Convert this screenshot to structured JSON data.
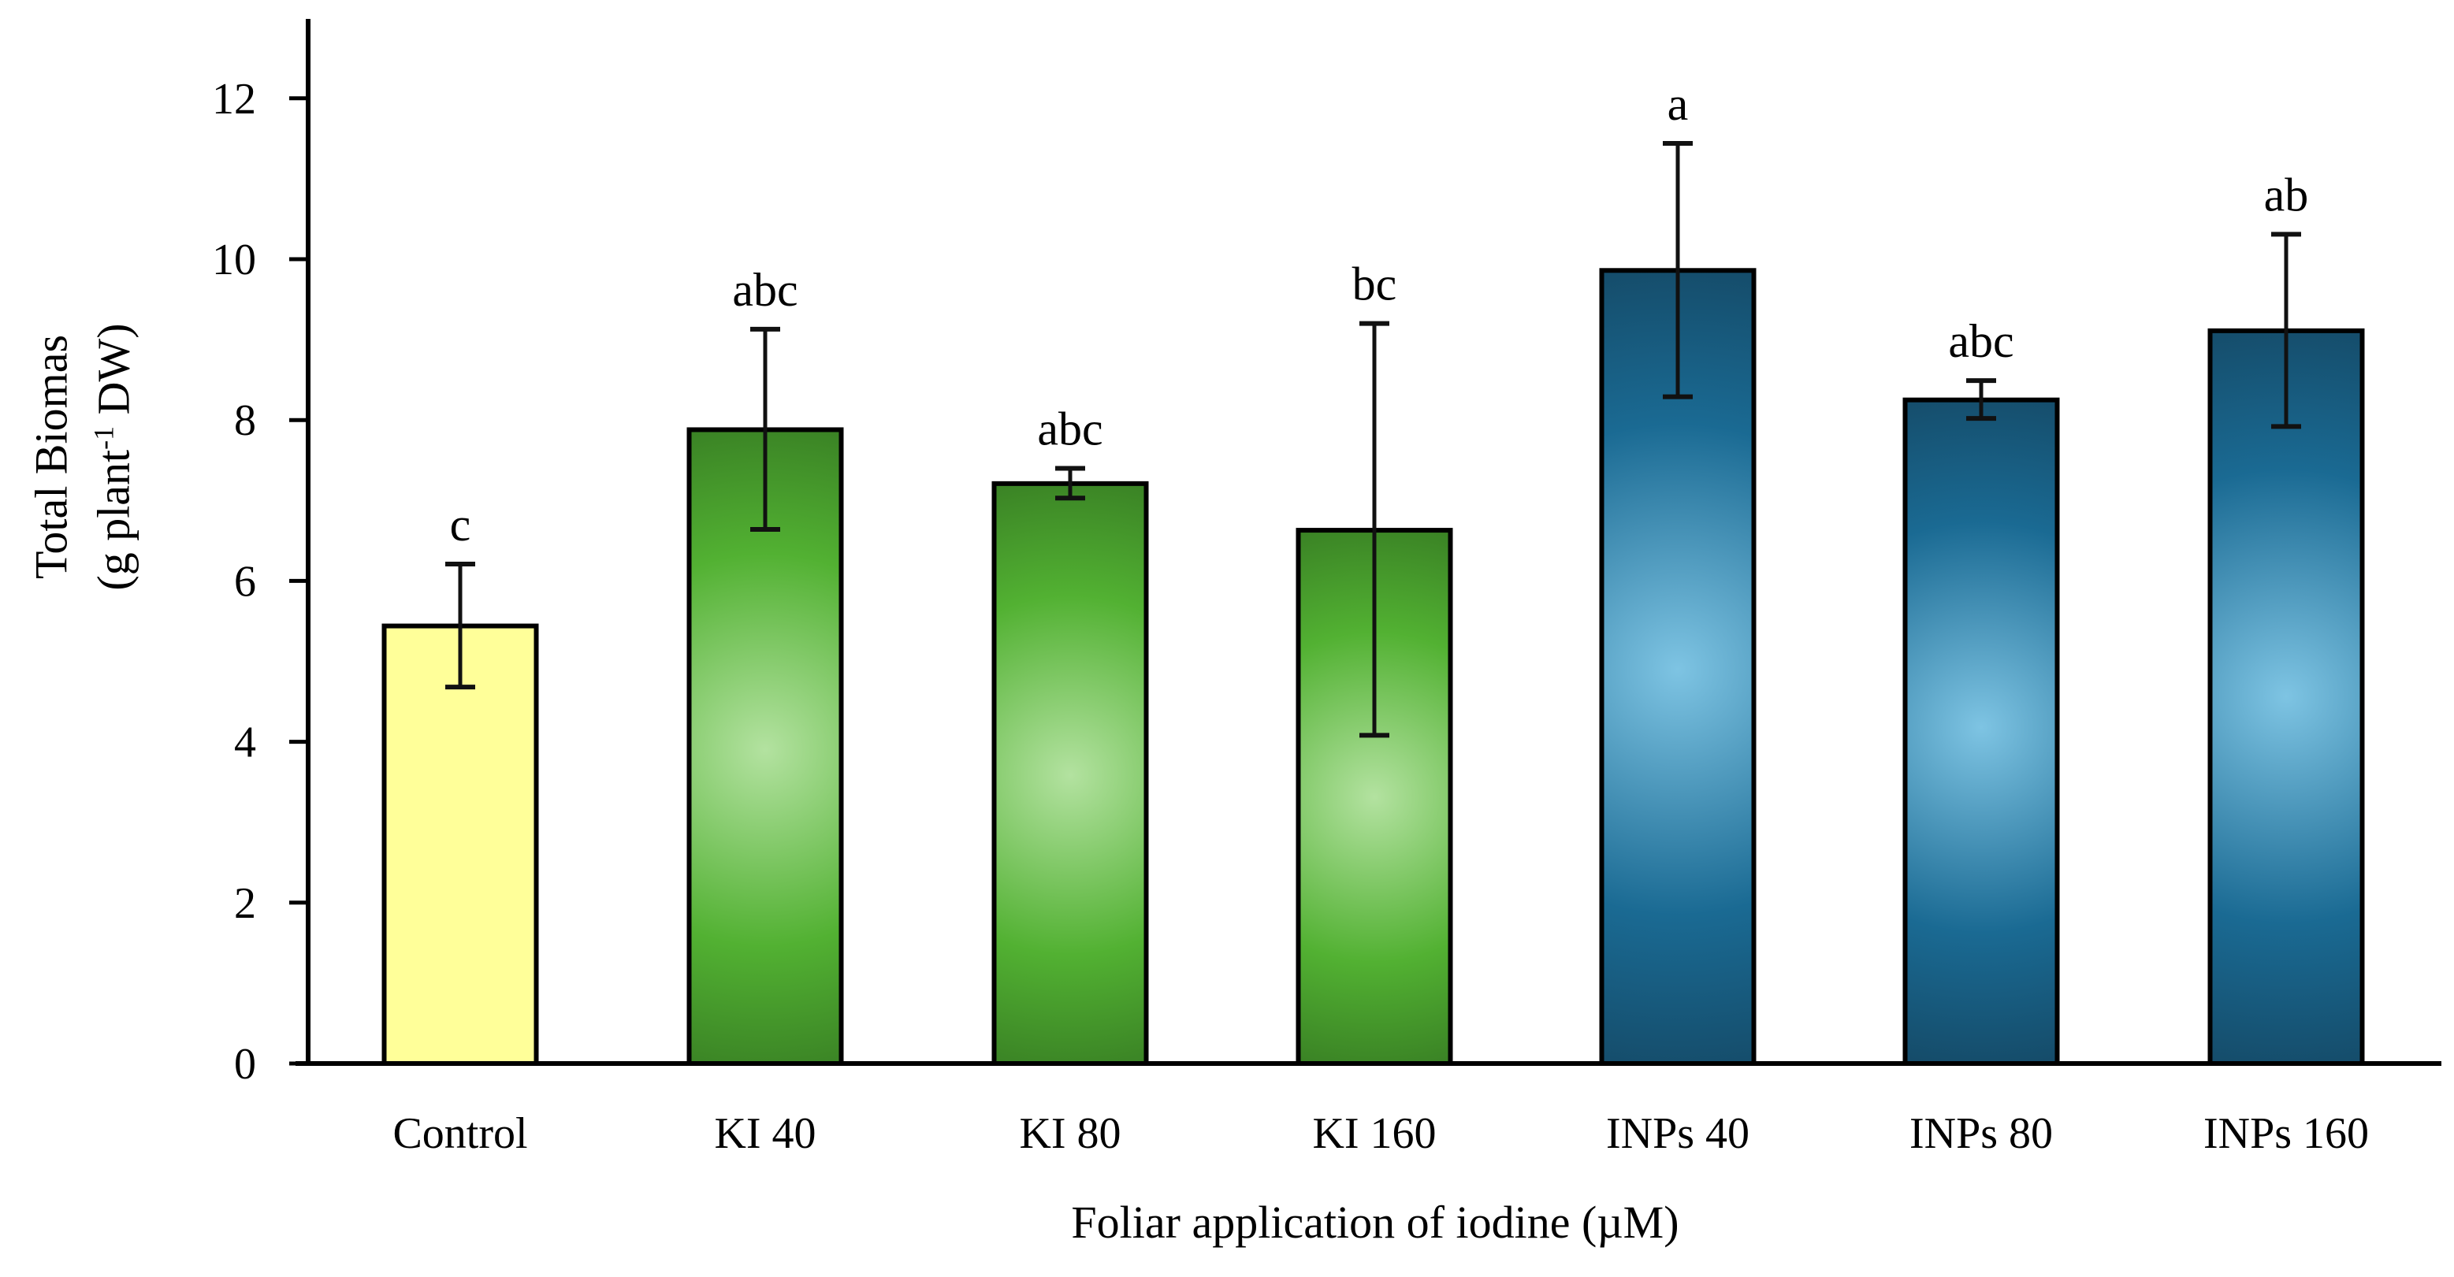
{
  "chart_data": {
    "type": "bar",
    "title": "",
    "xlabel": "Foliar application of iodine (µM)",
    "ylabel_line1": "Total Biomas",
    "ylabel_line2_prefix": "(g plant",
    "ylabel_line2_sup": "-1",
    "ylabel_line2_suffix": " DW)",
    "ylabel": "Total Biomas (g plant-1 DW)",
    "ylim": [
      0,
      13
    ],
    "yticks": [
      0,
      2,
      4,
      6,
      8,
      10,
      12
    ],
    "grid": false,
    "legend": null,
    "categories": [
      "Control",
      "KI 40",
      "KI 80",
      "KI 160",
      "INPs 40",
      "INPs 80",
      "INPs 160"
    ],
    "values": [
      5.44,
      7.88,
      7.21,
      6.63,
      9.86,
      8.25,
      9.11
    ],
    "error_upper": [
      6.21,
      9.13,
      7.4,
      9.2,
      11.44,
      8.49,
      10.31
    ],
    "error_lower": [
      4.68,
      6.64,
      7.03,
      4.08,
      8.29,
      8.02,
      7.92
    ],
    "significance_letters": [
      "c",
      "abc",
      "abc",
      "bc",
      "a",
      "abc",
      "ab"
    ],
    "bar_styles": [
      "yellow",
      "green",
      "green",
      "green",
      "blue",
      "blue",
      "blue"
    ]
  },
  "colors": {
    "yellow_fill": "#ffff99",
    "green_center": "#b3e2a0",
    "green_mid": "#52b132",
    "green_edge": "#2e6b1e",
    "blue_center": "#7ec4e3",
    "blue_mid": "#1a6a93",
    "blue_edge": "#123c54",
    "outline": "#000000"
  }
}
